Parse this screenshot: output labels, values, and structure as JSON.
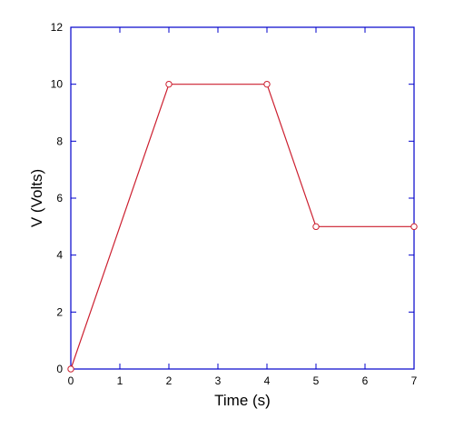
{
  "chart_data": {
    "type": "line",
    "title": "",
    "xlabel": "Time (s)",
    "ylabel": "V (Volts)",
    "xlim": [
      0,
      7
    ],
    "ylim": [
      0,
      12
    ],
    "x_ticks": [
      "0",
      "1",
      "2",
      "3",
      "4",
      "5",
      "6",
      "7"
    ],
    "y_ticks": [
      "0",
      "2",
      "4",
      "6",
      "8",
      "10",
      "12"
    ],
    "grid": false,
    "legend": "none",
    "series": [
      {
        "x": [
          0,
          2,
          4,
          5,
          7
        ],
        "y": [
          0,
          10,
          10,
          5,
          5
        ],
        "marker": "open-circle"
      }
    ]
  },
  "colors": {
    "axes": "#0000cc",
    "series": "#cc1f2f",
    "text": "#000000"
  }
}
